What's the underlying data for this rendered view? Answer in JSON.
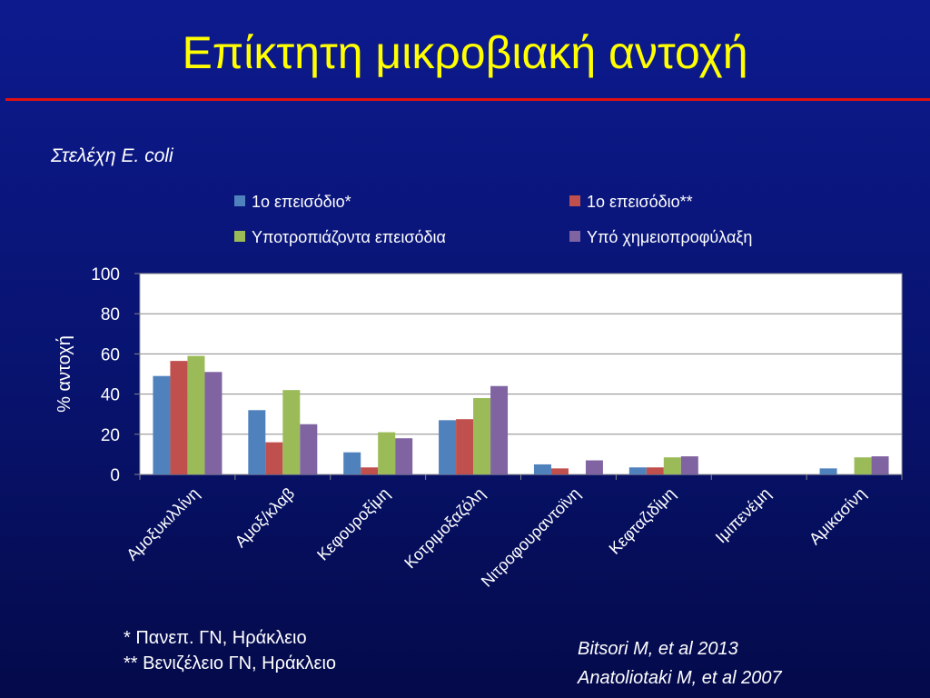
{
  "slide": {
    "title": "Επίκτητη μικροβιακή αντοχή",
    "subtitle": "Στελέχη E. coli",
    "footnotes": [
      "* Πανεπ. ΓΝ, Ηράκλειο",
      "** Βενιζέλειο ΓΝ, Ηράκλειο"
    ],
    "references": [
      "Bitsori M, et al 2013",
      "Anatoliotaki M, et al 2007"
    ]
  },
  "chart_data": {
    "type": "bar",
    "title": "",
    "xlabel": "",
    "ylabel": "% αντοχή",
    "ylim": [
      0,
      100
    ],
    "yticks": [
      "0",
      "20",
      "40",
      "60",
      "80",
      "100"
    ],
    "grid": true,
    "legend_position": "top",
    "categories": [
      "Αμοξυκιλλίνη",
      "Αμοξ/κλαβ",
      "Κεφουροξίμη",
      "Κοτριμοξαζόλη",
      "Νιτροφουραντοϊνη",
      "Κεφταζιδίμη",
      "Ιμιπενέμη",
      "Αμικασίνη"
    ],
    "series": [
      {
        "name": "1ο επεισόδιο*",
        "color": "#4f81bd",
        "values": [
          49,
          32,
          11,
          27,
          5,
          3.5,
          0,
          3
        ]
      },
      {
        "name": "1ο επεισόδιο**",
        "color": "#c0504d",
        "values": [
          56.5,
          16,
          3.5,
          27.5,
          3,
          3.5,
          0,
          0
        ]
      },
      {
        "name": "Υποτροπιάζοντα επεισόδια",
        "color": "#9bbb59",
        "values": [
          59,
          42,
          21,
          38,
          0,
          8.5,
          0,
          8.5
        ]
      },
      {
        "name": "Υπό χημειοπροφύλαξη",
        "color": "#8064a2",
        "values": [
          51,
          25,
          18,
          44,
          7,
          9,
          0,
          9
        ]
      }
    ]
  }
}
